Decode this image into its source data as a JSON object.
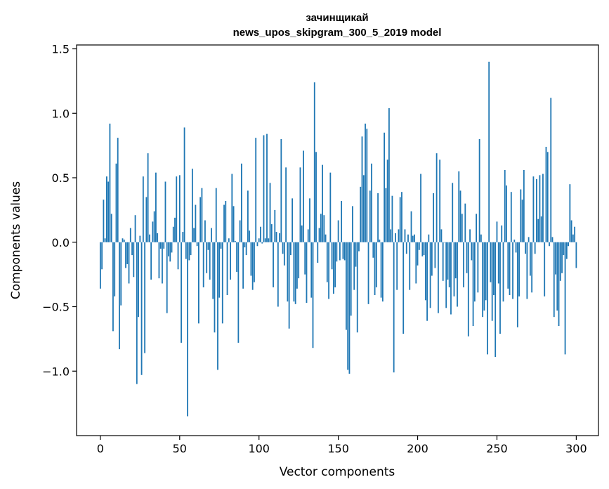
{
  "chart_data": {
    "type": "bar",
    "title": "зачинщикай",
    "subtitle": "news_upos_skipgram_300_5_2019 model",
    "xlabel": "Vector components",
    "ylabel": "Components values",
    "xlim": [
      -15,
      314
    ],
    "ylim": [
      -1.5,
      1.53
    ],
    "xticks": [
      0,
      50,
      100,
      150,
      200,
      250,
      300
    ],
    "xtick_labels": [
      "0",
      "50",
      "100",
      "150",
      "200",
      "250",
      "300"
    ],
    "yticks": [
      -1.0,
      -0.5,
      0.0,
      0.5,
      1.0,
      1.5
    ],
    "ytick_labels": [
      "−1.0",
      "−0.5",
      "0.0",
      "0.5",
      "1.0",
      "1.5"
    ],
    "grid": false,
    "bar_color": "#1f77b4",
    "values": [
      -0.36,
      -0.21,
      0.33,
      0.03,
      0.51,
      0.47,
      0.92,
      0.22,
      -0.69,
      -0.42,
      0.61,
      0.81,
      -0.83,
      -0.49,
      0.03,
      0.02,
      -0.2,
      -0.17,
      -0.32,
      0.11,
      -0.1,
      -0.27,
      0.21,
      -1.1,
      -0.58,
      0.05,
      -1.03,
      0.51,
      -0.86,
      0.35,
      0.69,
      0.06,
      -0.29,
      0.16,
      0.24,
      0.54,
      0.07,
      -0.28,
      -0.05,
      -0.32,
      -0.05,
      0.47,
      -0.55,
      -0.11,
      -0.15,
      -0.08,
      0.12,
      0.19,
      0.51,
      -0.21,
      0.52,
      -0.78,
      0.08,
      0.89,
      -0.13,
      -1.35,
      -0.14,
      -0.1,
      0.57,
      0.11,
      0.29,
      -0.03,
      -0.63,
      0.35,
      0.42,
      -0.35,
      0.17,
      -0.24,
      -0.06,
      -0.29,
      0.11,
      -0.44,
      -0.7,
      0.42,
      -0.99,
      -0.43,
      -0.05,
      -0.63,
      0.29,
      0.32,
      -0.41,
      0.03,
      -0.29,
      0.53,
      0.28,
      0.01,
      -0.23,
      -0.78,
      0.17,
      0.61,
      -0.36,
      -0.04,
      -0.1,
      0.4,
      0.09,
      -0.26,
      -0.37,
      -0.31,
      0.81,
      -0.03,
      0.03,
      0.12,
      -0.01,
      0.83,
      0.03,
      0.84,
      0.03,
      0.46,
      0.14,
      -0.35,
      0.25,
      0.08,
      -0.5,
      0.07,
      0.8,
      -0.09,
      -0.18,
      0.58,
      -0.46,
      -0.67,
      -0.1,
      0.34,
      -0.46,
      -0.48,
      -0.36,
      -0.28,
      0.58,
      0.13,
      0.71,
      -0.25,
      -0.47,
      0.1,
      0.34,
      -0.43,
      -0.82,
      1.24,
      0.7,
      -0.16,
      0.11,
      0.22,
      0.6,
      0.21,
      0.06,
      -0.31,
      -0.44,
      0.54,
      -0.21,
      -0.4,
      -0.35,
      -0.15,
      0.17,
      -0.14,
      0.32,
      -0.13,
      -0.14,
      -0.68,
      -0.99,
      -1.02,
      -0.57,
      0.28,
      -0.37,
      -0.19,
      -0.7,
      -0.07,
      0.43,
      0.82,
      0.52,
      0.92,
      0.88,
      -0.48,
      0.4,
      0.61,
      -0.12,
      -0.41,
      -0.35,
      0.38,
      0.02,
      -0.43,
      -0.46,
      0.85,
      0.42,
      0.64,
      1.04,
      0.1,
      0.36,
      -1.01,
      0.07,
      -0.37,
      0.1,
      0.35,
      0.39,
      -0.71,
      0.1,
      -0.09,
      0.06,
      -0.37,
      0.24,
      0.05,
      0.06,
      -0.32,
      -0.18,
      -0.06,
      0.53,
      -0.11,
      -0.1,
      -0.45,
      -0.61,
      0.06,
      -0.51,
      -0.26,
      0.38,
      -0.2,
      0.69,
      -0.55,
      0.64,
      0.1,
      -0.3,
      0.0,
      -0.51,
      -0.29,
      -0.35,
      -0.56,
      0.46,
      -0.42,
      -0.28,
      -0.5,
      0.55,
      0.4,
      0.22,
      -0.35,
      0.3,
      -0.24,
      -0.73,
      0.1,
      -0.14,
      -0.65,
      -0.46,
      0.22,
      -0.39,
      0.8,
      0.06,
      -0.58,
      -0.53,
      -0.45,
      -0.87,
      1.4,
      -0.31,
      -0.61,
      -0.41,
      -0.89,
      0.16,
      -0.32,
      -0.71,
      0.13,
      -0.46,
      0.56,
      0.44,
      -0.36,
      -0.41,
      0.39,
      -0.44,
      0.02,
      -0.08,
      -0.66,
      -0.42,
      0.41,
      0.33,
      0.56,
      -0.09,
      -0.44,
      0.04,
      -0.26,
      -0.39,
      0.51,
      -0.09,
      0.49,
      0.18,
      0.52,
      0.2,
      0.53,
      -0.42,
      0.74,
      0.7,
      -0.03,
      1.12,
      0.04,
      -0.58,
      -0.25,
      -0.53,
      -0.65,
      -0.3,
      -0.24,
      -0.1,
      -0.87,
      -0.13,
      -0.03,
      0.45,
      0.17,
      0.06,
      0.12,
      -0.2
    ]
  }
}
